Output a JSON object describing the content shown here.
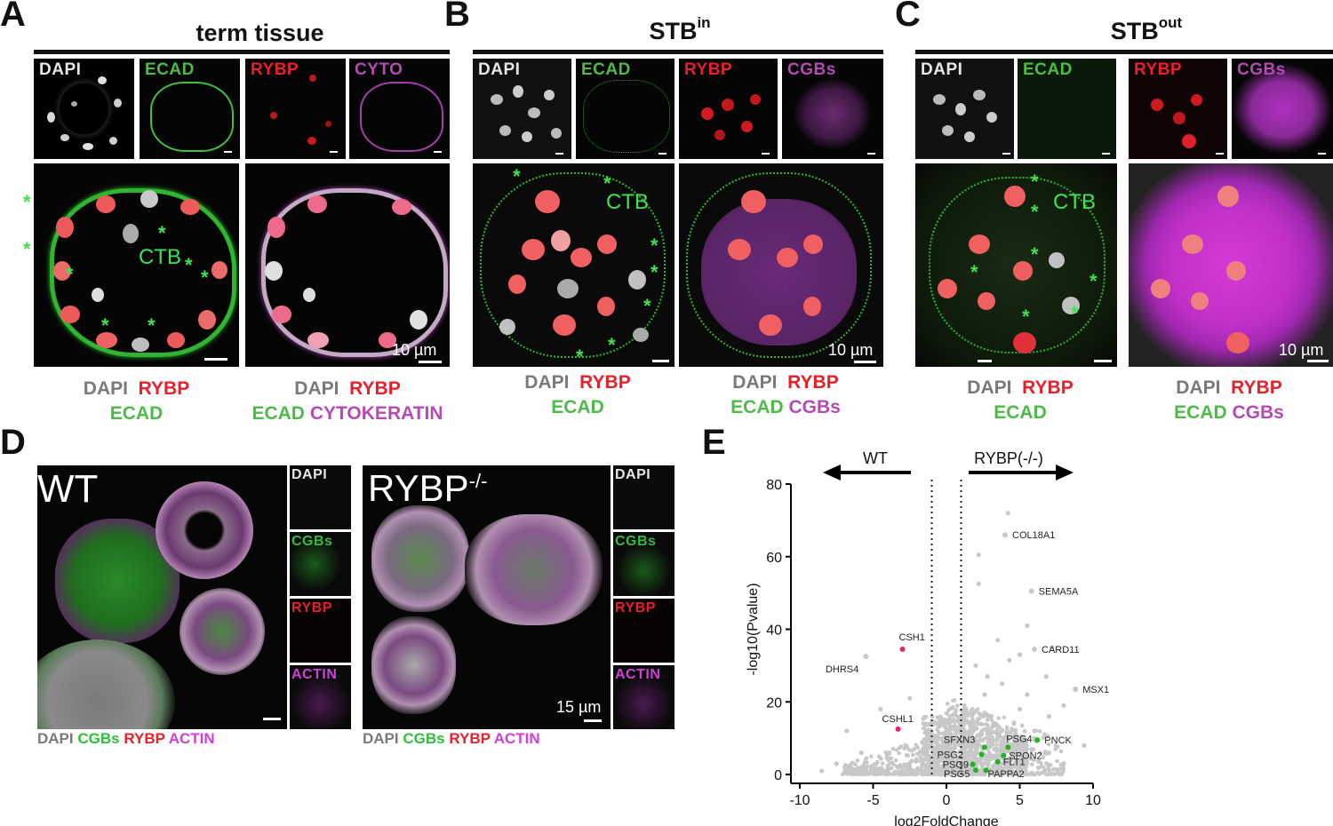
{
  "panels": {
    "A": {
      "letter": "A",
      "title": "term tissue",
      "small_labels": [
        "DAPI",
        "ECAD",
        "RYBP",
        "CYTO"
      ],
      "ctb": "CTB",
      "scale": "10 µm",
      "legend_left": {
        "dapi": "DAPI",
        "rybp": "RYBP",
        "ecad": "ECAD"
      },
      "legend_right": {
        "dapi": "DAPI",
        "rybp": "RYBP",
        "ecad": "ECAD",
        "cyto": "CYTOKERATIN"
      }
    },
    "B": {
      "letter": "B",
      "title_main": "STB",
      "title_sup": "in",
      "small_labels": [
        "DAPI",
        "ECAD",
        "RYBP",
        "CGBs"
      ],
      "ctb": "CTB",
      "scale": "10 µm",
      "legend_left": {
        "dapi": "DAPI",
        "rybp": "RYBP",
        "ecad": "ECAD"
      },
      "legend_right": {
        "dapi": "DAPI",
        "rybp": "RYBP",
        "ecad": "ECAD",
        "cgbs": "CGBs"
      }
    },
    "C": {
      "letter": "C",
      "title_main": "STB",
      "title_sup": "out",
      "small_labels": [
        "DAPI",
        "ECAD",
        "RYBP",
        "CGBs"
      ],
      "ctb": "CTB",
      "scale": "10 µm",
      "legend_left": {
        "dapi": "DAPI",
        "rybp": "RYBP",
        "ecad": "ECAD"
      },
      "legend_right": {
        "dapi": "DAPI",
        "rybp": "RYBP",
        "ecad": "ECAD",
        "cgbs": "CGBs"
      }
    },
    "D": {
      "letter": "D",
      "wt_label": "WT",
      "ko_label_main": "RYBP",
      "ko_label_sup": "-/-",
      "side_labels": [
        "DAPI",
        "CGBs",
        "RYBP",
        "ACTIN"
      ],
      "scale": "15 µm",
      "legend": {
        "dapi": "DAPI",
        "cgbs": "CGBs",
        "rybp": "RYBP",
        "actin": "ACTIN"
      }
    },
    "E": {
      "letter": "E",
      "arrow_left": "WT",
      "arrow_right": "RYBP(-/-)"
    }
  },
  "colors": {
    "dapi": "#7a7a7a",
    "rybp": "#e8202a",
    "ecad": "#4cbb47",
    "magenta": "#b44bb4",
    "highlight_pink": "#e8236f",
    "highlight_green": "#20b320",
    "bg_points": "#c8c8c8"
  },
  "chart_data": {
    "type": "scatter",
    "title": "",
    "xlabel": "log2FoldChange",
    "ylabel": "-log10(Pvalue)",
    "xlim": [
      -10,
      10
    ],
    "ylim": [
      0,
      80
    ],
    "xticks": [
      -10,
      -5,
      0,
      5,
      10
    ],
    "yticks": [
      0,
      20,
      40,
      60,
      80
    ],
    "thresholds_x": [
      -1,
      1
    ],
    "labeled_points": [
      {
        "gene": "COL18A1",
        "x": 4.0,
        "y": 66,
        "group": "gray"
      },
      {
        "gene": "SEMA5A",
        "x": 5.8,
        "y": 50.5,
        "group": "gray"
      },
      {
        "gene": "CARD11",
        "x": 6.0,
        "y": 34.5,
        "group": "gray"
      },
      {
        "gene": "MSX1",
        "x": 8.8,
        "y": 23.5,
        "group": "gray"
      },
      {
        "gene": "DHRS4",
        "x": -5.5,
        "y": 32.5,
        "group": "gray"
      },
      {
        "gene": "CSH1",
        "x": -3.0,
        "y": 34.5,
        "group": "pink"
      },
      {
        "gene": "CSHL1",
        "x": -3.3,
        "y": 12.5,
        "group": "pink"
      },
      {
        "gene": "PNCK",
        "x": 6.2,
        "y": 9.5,
        "group": "green"
      },
      {
        "gene": "PSG4",
        "x": 4.2,
        "y": 7.5,
        "group": "green"
      },
      {
        "gene": "SFXN3",
        "x": 2.6,
        "y": 7.5,
        "group": "green"
      },
      {
        "gene": "PSG2",
        "x": 2.4,
        "y": 5.5,
        "group": "green"
      },
      {
        "gene": "SPON2",
        "x": 3.9,
        "y": 5.2,
        "group": "green"
      },
      {
        "gene": "FLT1",
        "x": 3.5,
        "y": 3.5,
        "group": "green"
      },
      {
        "gene": "PSG9",
        "x": 1.8,
        "y": 2.8,
        "group": "green"
      },
      {
        "gene": "PSG5",
        "x": 2.0,
        "y": 1.2,
        "group": "green"
      },
      {
        "gene": "PAPPA2",
        "x": 2.7,
        "y": 1.2,
        "group": "green"
      }
    ],
    "background_points": [
      {
        "x": 4.2,
        "y": 72
      },
      {
        "x": 2.2,
        "y": 60.5
      },
      {
        "x": 2.2,
        "y": 52.5
      },
      {
        "x": 5.5,
        "y": 41
      },
      {
        "x": 5.0,
        "y": 33
      },
      {
        "x": 4.3,
        "y": 31.5
      },
      {
        "x": 7.2,
        "y": 35
      },
      {
        "x": 3.5,
        "y": 37
      },
      {
        "x": 2.0,
        "y": 30
      },
      {
        "x": 6.8,
        "y": 27
      },
      {
        "x": 3.8,
        "y": 25
      },
      {
        "x": 5.5,
        "y": 22
      },
      {
        "x": 2.6,
        "y": 22
      },
      {
        "x": 8.0,
        "y": 19
      },
      {
        "x": 7.0,
        "y": 16
      },
      {
        "x": 9.4,
        "y": 8
      },
      {
        "x": -6.8,
        "y": 12
      },
      {
        "x": -5.8,
        "y": 6
      },
      {
        "x": -7.5,
        "y": 3
      },
      {
        "x": -8.5,
        "y": 1
      },
      {
        "x": 8.0,
        "y": 3
      },
      {
        "x": 7.0,
        "y": 6
      },
      {
        "x": -4.5,
        "y": 18
      },
      {
        "x": -2.5,
        "y": 21
      },
      {
        "x": 3.0,
        "y": 16
      },
      {
        "x": 4.6,
        "y": 14
      },
      {
        "x": 1.8,
        "y": 12
      },
      {
        "x": 6.0,
        "y": 12
      },
      {
        "x": 5.0,
        "y": 18
      },
      {
        "x": 2.8,
        "y": 27
      }
    ]
  }
}
